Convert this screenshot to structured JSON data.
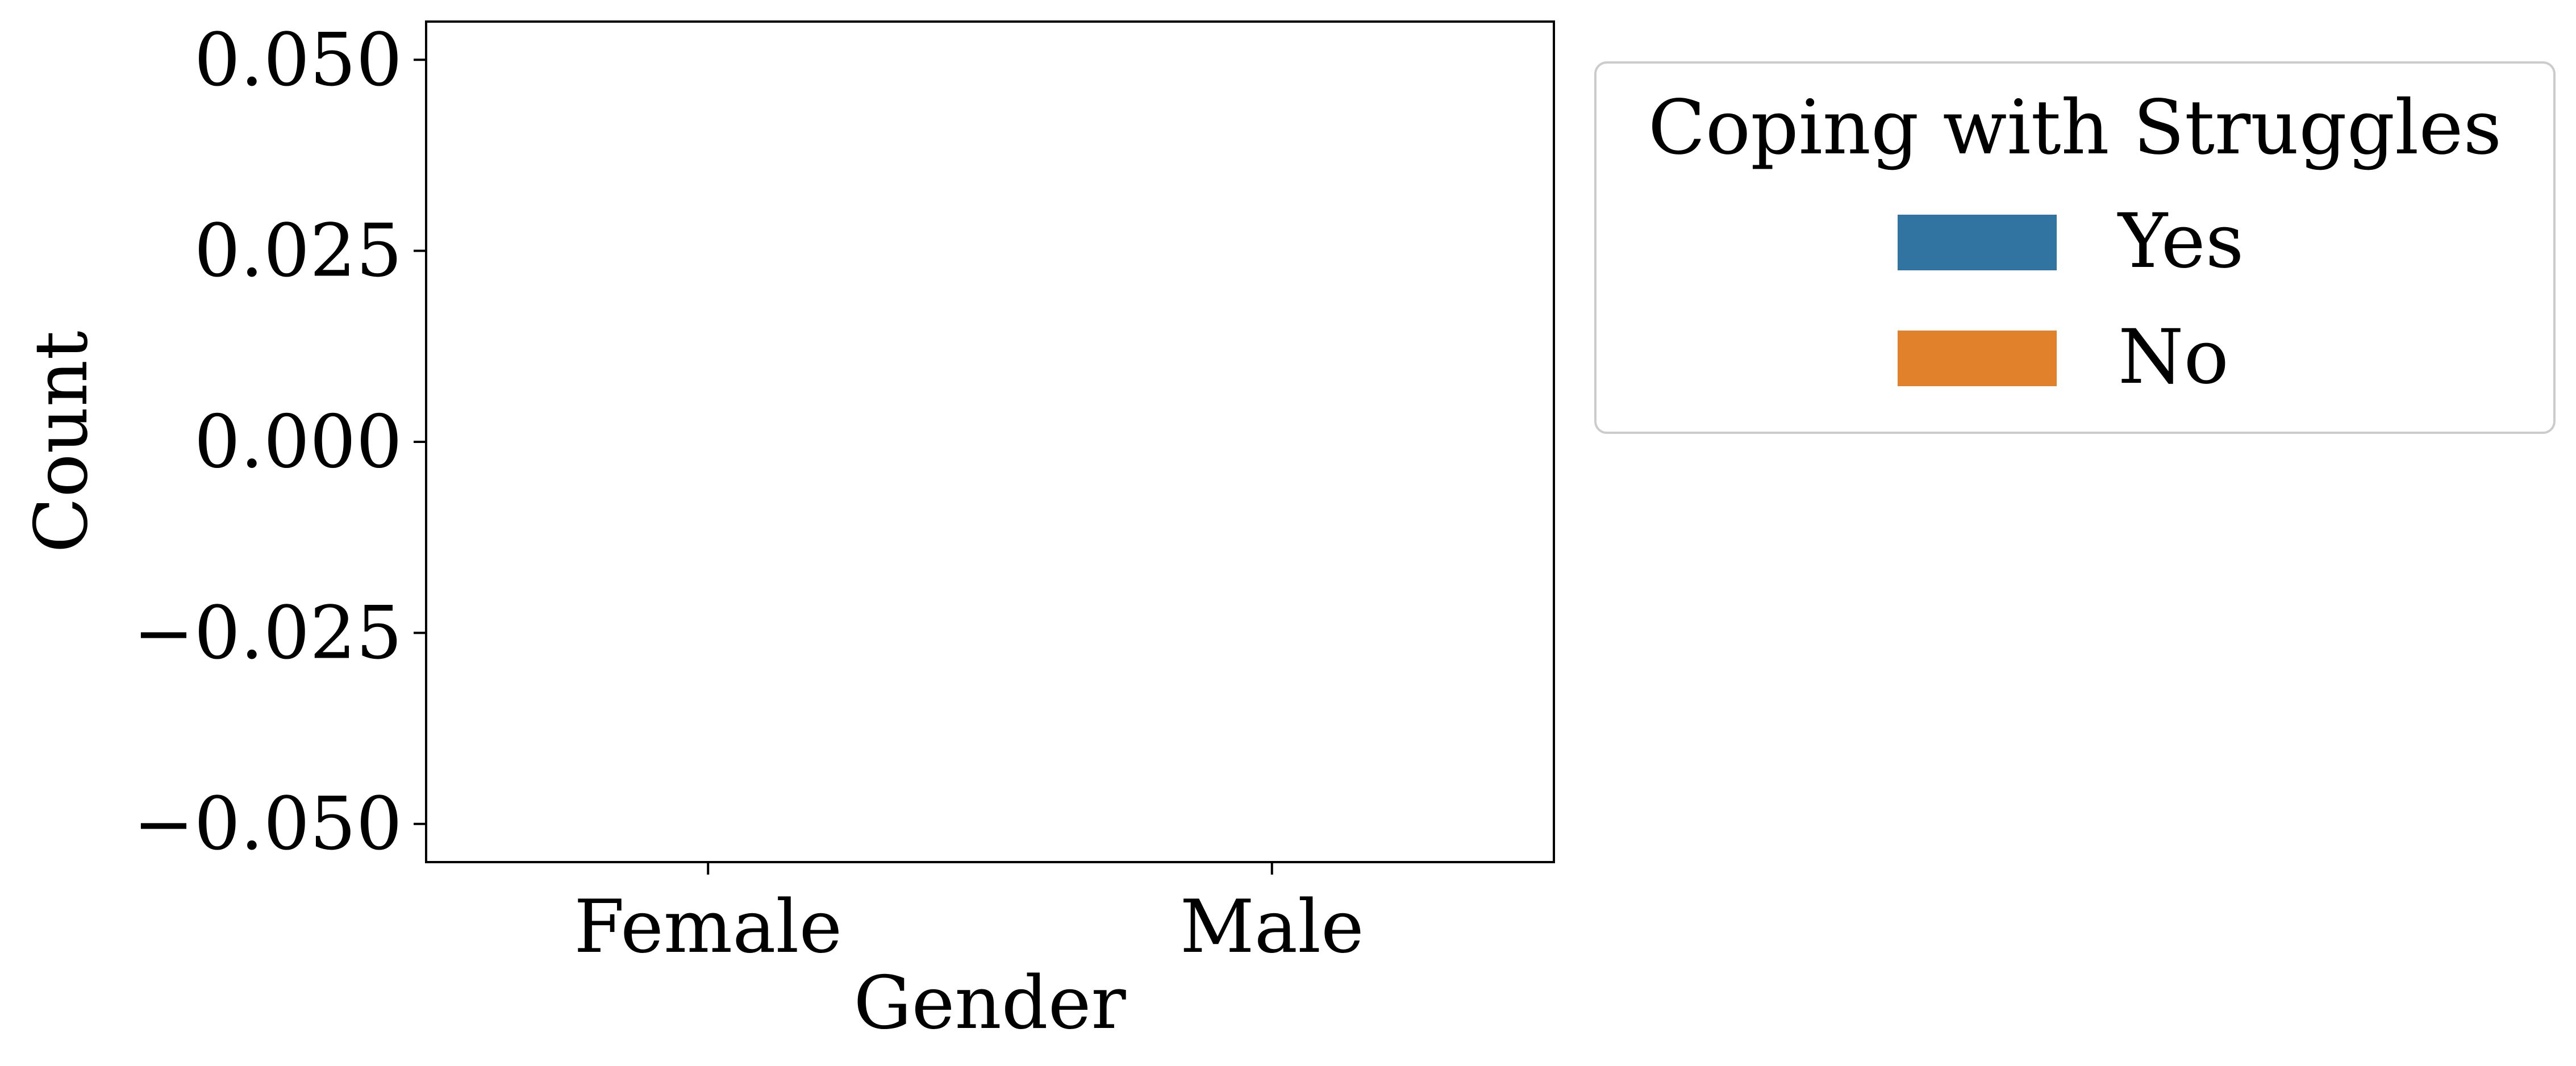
{
  "chart_data": {
    "type": "bar",
    "title": "",
    "xlabel": "Gender",
    "ylabel": "Count",
    "categories": [
      "Female",
      "Male"
    ],
    "series": [
      {
        "name": "Yes",
        "color": "#3274a1",
        "values": [
          0,
          0
        ]
      },
      {
        "name": "No",
        "color": "#e1812c",
        "values": [
          0,
          0
        ]
      }
    ],
    "ylim": [
      -0.055,
      0.055
    ],
    "yticks": [
      0.05,
      0.025,
      0.0,
      -0.025,
      -0.05
    ],
    "ytick_labels": [
      "0.050",
      "0.025",
      "0.000",
      "−0.025",
      "−0.050"
    ],
    "grid": false,
    "legend": {
      "title": "Coping with Struggles",
      "placement": "outside-upper-right"
    }
  }
}
